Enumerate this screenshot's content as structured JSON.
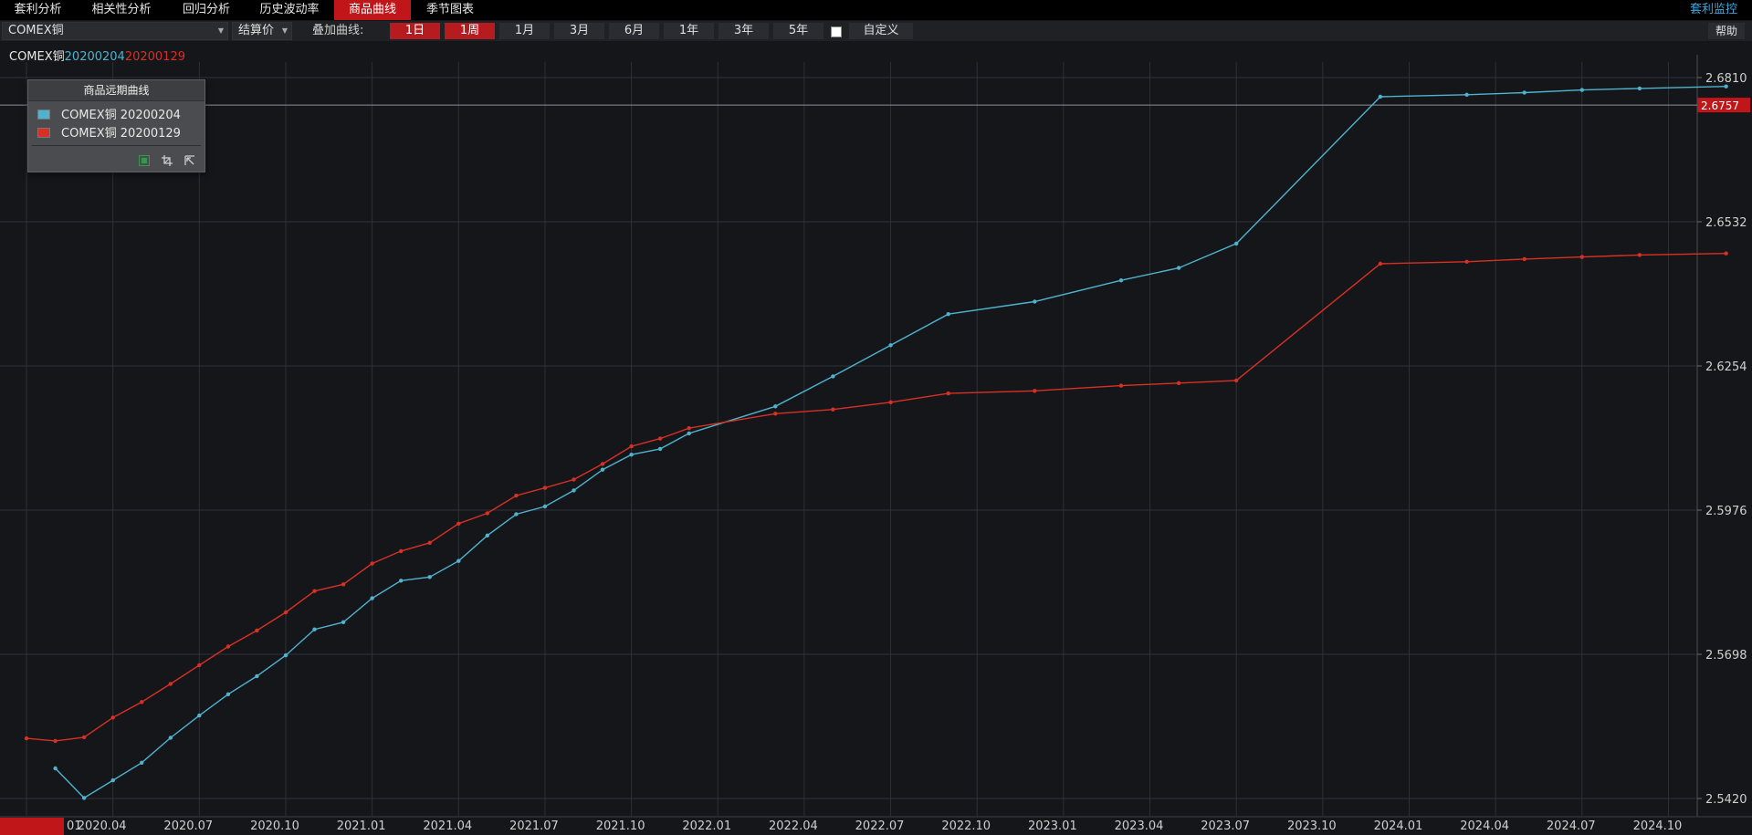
{
  "menu": {
    "items": [
      "套利分析",
      "相关性分析",
      "回归分析",
      "历史波动率",
      "商品曲线",
      "季节图表"
    ],
    "active": "商品曲线",
    "right_link": "套利监控"
  },
  "toolbar": {
    "symbol": "COMEX铜",
    "price_type": "结算价",
    "overlay_label": "叠加曲线:",
    "periods": [
      "1日",
      "1周",
      "1月",
      "3月",
      "6月",
      "1年",
      "3年",
      "5年"
    ],
    "active_periods": [
      "1日",
      "1周"
    ],
    "custom_label": "自定义",
    "custom_checked": false,
    "help_label": "帮助"
  },
  "series_title": {
    "symbol": "COMEX铜",
    "date1": "20200204",
    "date2": "20200129"
  },
  "legend": {
    "title": "商品远期曲线",
    "items": [
      {
        "label": "COMEX铜 20200204",
        "color": "#4fb3cf"
      },
      {
        "label": "COMEX铜 20200129",
        "color": "#d93025"
      }
    ]
  },
  "colors": {
    "accent": "#c0161a",
    "series1": "#4fb3cf",
    "series2": "#d93025",
    "link": "#3aa7e0"
  },
  "chart_data": {
    "type": "line",
    "xlabel": "",
    "ylabel": "",
    "x_ticks": [
      "2020.04",
      "2020.07",
      "2020.10",
      "2021.01",
      "2021.04",
      "2021.07",
      "2021.10",
      "2022.01",
      "2022.04",
      "2022.07",
      "2022.10",
      "2023.01",
      "2023.04",
      "2023.07",
      "2023.10",
      "2024.01",
      "2024.04",
      "2024.07",
      "2024.10"
    ],
    "x_range": [
      "2020-01",
      "2024-11"
    ],
    "y_ticks": [
      "2.6810",
      "2.6532",
      "2.6254",
      "2.5976",
      "2.5698",
      "2.5420"
    ],
    "ylim": [
      2.542,
      2.681
    ],
    "current_price": "2.6757",
    "cut_label": "01",
    "grid": true,
    "series": [
      {
        "name": "COMEX铜 20200204",
        "color": "#4fb3cf",
        "x": [
          "2020-02",
          "2020-03",
          "2020-04",
          "2020-05",
          "2020-06",
          "2020-07",
          "2020-08",
          "2020-09",
          "2020-10",
          "2020-11",
          "2020-12",
          "2021-01",
          "2021-02",
          "2021-03",
          "2021-04",
          "2021-05",
          "2021-06",
          "2021-07",
          "2021-08",
          "2021-09",
          "2021-10",
          "2021-11",
          "2021-12",
          "2022-03",
          "2022-05",
          "2022-07",
          "2022-09",
          "2022-12",
          "2023-03",
          "2023-05",
          "2023-07",
          "2023-12",
          "2024-03",
          "2024-05",
          "2024-07",
          "2024-09",
          "2024-12"
        ],
        "y": [
          2.5478,
          2.5421,
          2.5455,
          2.5489,
          2.5537,
          2.558,
          2.5621,
          2.5656,
          2.5696,
          2.5746,
          2.576,
          2.5806,
          2.584,
          2.5847,
          2.5878,
          2.5927,
          2.5968,
          2.5983,
          2.6014,
          2.6054,
          2.6083,
          2.6094,
          2.6124,
          2.6176,
          2.6234,
          2.6294,
          2.6354,
          2.6378,
          2.6419,
          2.6443,
          2.649,
          2.6773,
          2.6777,
          2.6781,
          2.6786,
          2.6789,
          2.6793
        ]
      },
      {
        "name": "COMEX铜 20200129",
        "color": "#d93025",
        "x": [
          "2020-01",
          "2020-02",
          "2020-03",
          "2020-04",
          "2020-05",
          "2020-06",
          "2020-07",
          "2020-08",
          "2020-09",
          "2020-10",
          "2020-11",
          "2020-12",
          "2021-01",
          "2021-02",
          "2021-03",
          "2021-04",
          "2021-05",
          "2021-06",
          "2021-07",
          "2021-08",
          "2021-09",
          "2021-10",
          "2021-11",
          "2021-12",
          "2022-03",
          "2022-05",
          "2022-07",
          "2022-09",
          "2022-12",
          "2023-03",
          "2023-05",
          "2023-07",
          "2023-12",
          "2024-03",
          "2024-05",
          "2024-07",
          "2024-09",
          "2024-12"
        ],
        "y": [
          2.5536,
          2.5531,
          2.5538,
          2.5576,
          2.5606,
          2.5641,
          2.5677,
          2.5713,
          2.5744,
          2.5779,
          2.582,
          2.5833,
          2.5873,
          2.5897,
          2.5913,
          2.595,
          2.597,
          2.6004,
          2.6019,
          2.6035,
          2.6065,
          2.6099,
          2.6114,
          2.6134,
          2.6162,
          2.617,
          2.6184,
          2.6201,
          2.6206,
          2.6216,
          2.6221,
          2.6226,
          2.6451,
          2.6455,
          2.646,
          2.6464,
          2.6468,
          2.6471
        ]
      }
    ]
  }
}
